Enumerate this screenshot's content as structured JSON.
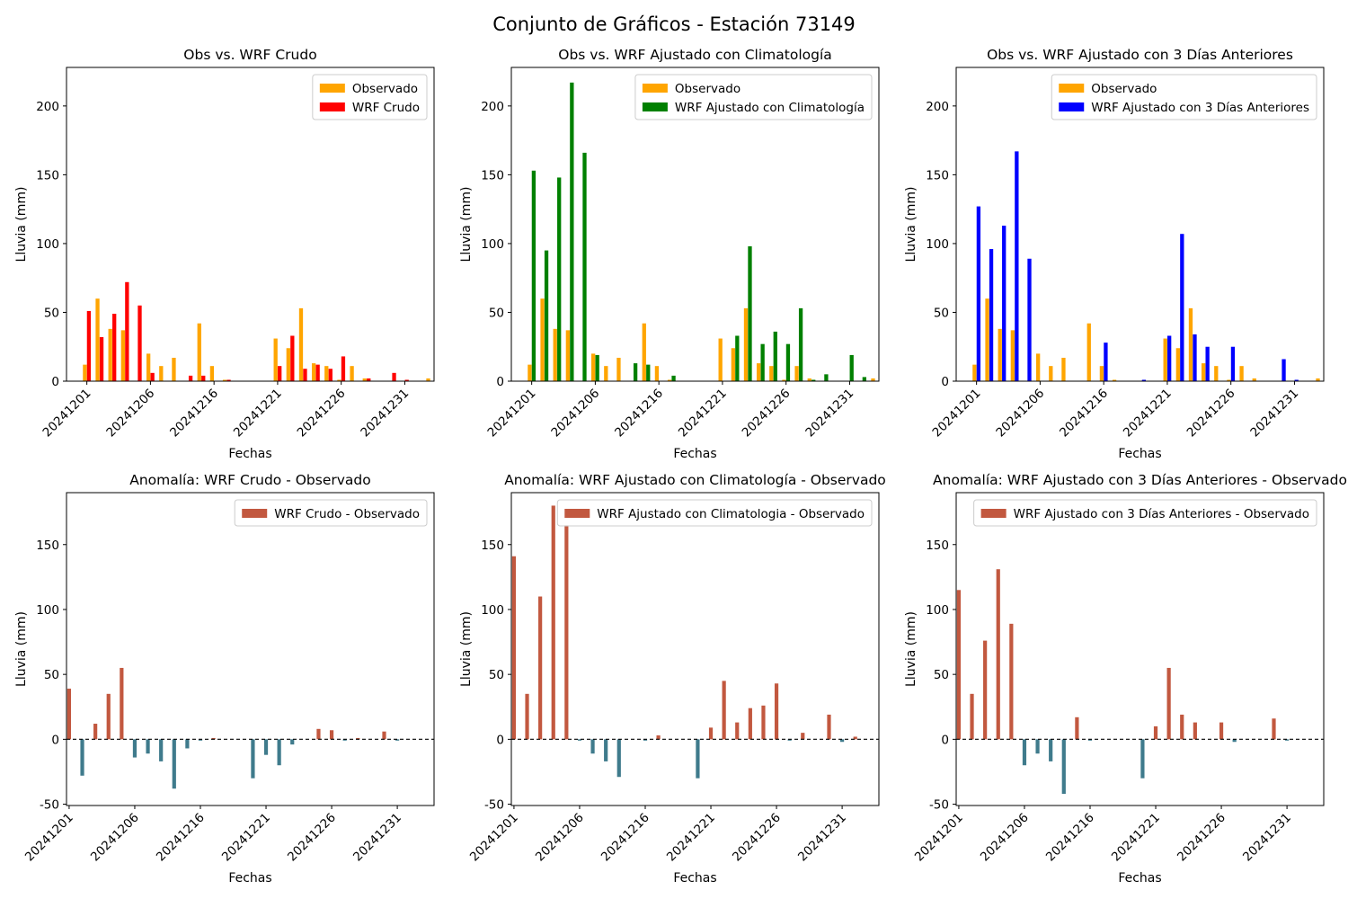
{
  "figure": {
    "title": "Conjunto de Gráficos - Estación 73149"
  },
  "colors": {
    "observed": "#ffa500",
    "raw": "#ff0000",
    "clim": "#008000",
    "prev3": "#0000ff",
    "anom_pos": "#c2583f",
    "anom_neg": "#3f7b8c"
  },
  "chart_data": [
    {
      "type": "bar",
      "title": "Obs vs. WRF Crudo",
      "xlabel": "Fechas",
      "ylabel": "Lluvia (mm)",
      "ylim": [
        0,
        228
      ],
      "yticks": [
        0,
        50,
        100,
        150,
        200
      ],
      "xticks": [
        "20241201",
        "20241206",
        "20241216",
        "20241221",
        "20241226",
        "20241231"
      ],
      "xtick_days": [
        1,
        6,
        11,
        16,
        21,
        26
      ],
      "xlim": [
        -1.6,
        27.3
      ],
      "legend_position": "top-right",
      "series": [
        {
          "name": "Observado",
          "color_key": "observed",
          "days": [
            1,
            2,
            3,
            4,
            5,
            6,
            7,
            8,
            9,
            10,
            11,
            12,
            13,
            14,
            15,
            16,
            17,
            18,
            19,
            20,
            21,
            22,
            23,
            24,
            25,
            26,
            27,
            28,
            29,
            30,
            31
          ],
          "values": [
            12,
            60,
            38,
            37,
            0,
            20,
            11,
            17,
            0,
            42,
            11,
            1,
            0,
            0,
            0,
            31,
            24,
            53,
            13,
            11,
            1,
            11,
            2,
            0,
            0,
            0,
            0,
            2,
            0,
            0,
            0
          ]
        },
        {
          "name": "WRF Crudo",
          "color_key": "raw",
          "days": [
            1,
            2,
            3,
            4,
            5,
            6,
            7,
            8,
            9,
            10,
            11,
            12,
            13,
            14,
            15,
            16,
            17,
            18,
            19,
            20,
            21,
            22,
            23,
            24,
            25,
            26,
            27,
            28,
            29,
            30,
            31
          ],
          "values": [
            51,
            32,
            49,
            72,
            55,
            6,
            0,
            0,
            4,
            4,
            0,
            1,
            0,
            0,
            0,
            11,
            33,
            9,
            12,
            9,
            18,
            0,
            2,
            0,
            6,
            1,
            0,
            0,
            0,
            0,
            0
          ]
        }
      ]
    },
    {
      "type": "bar",
      "title": "Obs vs. WRF Ajustado con Climatología",
      "xlabel": "Fechas",
      "ylabel": "Lluvia (mm)",
      "ylim": [
        0,
        228
      ],
      "yticks": [
        0,
        50,
        100,
        150,
        200
      ],
      "xticks": [
        "20241201",
        "20241206",
        "20241216",
        "20241221",
        "20241226",
        "20241231"
      ],
      "xtick_days": [
        1,
        6,
        11,
        16,
        21,
        26
      ],
      "xlim": [
        -1.6,
        27.3
      ],
      "legend_position": "top-right",
      "series": [
        {
          "name": "Observado",
          "color_key": "observed",
          "days": [
            1,
            2,
            3,
            4,
            5,
            6,
            7,
            8,
            9,
            10,
            11,
            12,
            13,
            14,
            15,
            16,
            17,
            18,
            19,
            20,
            21,
            22,
            23,
            24,
            25,
            26,
            27,
            28,
            29,
            30,
            31
          ],
          "values": [
            12,
            60,
            38,
            37,
            0,
            20,
            11,
            17,
            0,
            42,
            11,
            1,
            0,
            0,
            0,
            31,
            24,
            53,
            13,
            11,
            1,
            11,
            2,
            0,
            0,
            0,
            0,
            2,
            0,
            0,
            0
          ]
        },
        {
          "name": "WRF Ajustado con Climatología",
          "color_key": "clim",
          "days": [
            1,
            2,
            3,
            4,
            5,
            6,
            7,
            8,
            9,
            10,
            11,
            12,
            13,
            14,
            15,
            16,
            17,
            18,
            19,
            20,
            21,
            22,
            23,
            24,
            25,
            26,
            27,
            28,
            29,
            30,
            31
          ],
          "values": [
            153,
            95,
            148,
            217,
            166,
            19,
            0,
            0,
            13,
            12,
            0,
            4,
            0,
            0,
            0,
            0,
            33,
            98,
            27,
            36,
            27,
            53,
            1,
            5,
            0,
            19,
            3,
            0,
            0,
            0,
            0
          ]
        }
      ]
    },
    {
      "type": "bar",
      "title": "Obs vs. WRF Ajustado con 3 Días Anteriores",
      "xlabel": "Fechas",
      "ylabel": "Lluvia (mm)",
      "ylim": [
        0,
        228
      ],
      "yticks": [
        0,
        50,
        100,
        150,
        200
      ],
      "xticks": [
        "20241201",
        "20241206",
        "20241216",
        "20241221",
        "20241226",
        "20241231"
      ],
      "xtick_days": [
        1,
        6,
        11,
        16,
        21,
        26
      ],
      "xlim": [
        -1.6,
        27.3
      ],
      "legend_position": "top-right",
      "series": [
        {
          "name": "Observado",
          "color_key": "observed",
          "days": [
            1,
            2,
            3,
            4,
            5,
            6,
            7,
            8,
            9,
            10,
            11,
            12,
            13,
            14,
            15,
            16,
            17,
            18,
            19,
            20,
            21,
            22,
            23,
            24,
            25,
            26,
            27,
            28,
            29,
            30,
            31
          ],
          "values": [
            12,
            60,
            38,
            37,
            0,
            20,
            11,
            17,
            0,
            42,
            11,
            1,
            0,
            0,
            0,
            31,
            24,
            53,
            13,
            11,
            1,
            11,
            2,
            0,
            0,
            0,
            0,
            2,
            0,
            0,
            0
          ]
        },
        {
          "name": "WRF Ajustado con 3 Días Anteriores",
          "color_key": "prev3",
          "days": [
            1,
            2,
            3,
            4,
            5,
            6,
            7,
            8,
            9,
            10,
            11,
            12,
            13,
            14,
            15,
            16,
            17,
            18,
            19,
            20,
            21,
            22,
            23,
            24,
            25,
            26,
            27,
            28,
            29,
            30,
            31
          ],
          "values": [
            127,
            96,
            113,
            167,
            89,
            0,
            0,
            0,
            0,
            0,
            28,
            0,
            0,
            1,
            0,
            33,
            107,
            34,
            25,
            0,
            25,
            0,
            0,
            0,
            16,
            1,
            0,
            0,
            0,
            0,
            0
          ]
        }
      ]
    },
    {
      "type": "bar",
      "title": "Anomalía: WRF Crudo - Observado",
      "xlabel": "Fechas",
      "ylabel": "Lluvia (mm)",
      "ylim": [
        -51,
        190
      ],
      "yticks": [
        -50,
        0,
        50,
        100,
        150
      ],
      "xticks": [
        "20241201",
        "20241206",
        "20241216",
        "20241221",
        "20241226",
        "20241231"
      ],
      "xtick_days": [
        1,
        6,
        11,
        16,
        21,
        26
      ],
      "xlim": [
        -0.2,
        27.8
      ],
      "legend_position": "top-right",
      "series": [
        {
          "name": "WRF Crudo - Observado",
          "days": [
            1,
            2,
            3,
            4,
            5,
            6,
            7,
            8,
            9,
            10,
            11,
            12,
            13,
            14,
            15,
            16,
            17,
            18,
            19,
            20,
            21,
            22,
            23,
            24,
            25,
            26,
            27,
            28,
            29,
            30,
            31
          ],
          "values": [
            39,
            -28,
            12,
            35,
            55,
            -14,
            -11,
            -17,
            -38,
            -7,
            -1,
            1,
            0,
            0,
            -30,
            -12,
            -20,
            -4,
            0,
            8,
            7,
            -1,
            1,
            0,
            6,
            -1,
            0,
            0,
            0,
            0,
            0
          ]
        }
      ]
    },
    {
      "type": "bar",
      "title": "Anomalía: WRF Ajustado con Climatología - Observado",
      "xlabel": "Fechas",
      "ylabel": "Lluvia (mm)",
      "ylim": [
        -51,
        190
      ],
      "yticks": [
        -50,
        0,
        50,
        100,
        150
      ],
      "xticks": [
        "20241201",
        "20241206",
        "20241216",
        "20241221",
        "20241226",
        "20241231"
      ],
      "xtick_days": [
        1,
        6,
        11,
        16,
        21,
        26
      ],
      "xlim": [
        -0.2,
        27.8
      ],
      "legend_position": "top-right",
      "series": [
        {
          "name": "WRF Ajustado con Climatologia - Observado",
          "days": [
            1,
            2,
            3,
            4,
            5,
            6,
            7,
            8,
            9,
            10,
            11,
            12,
            13,
            14,
            15,
            16,
            17,
            18,
            19,
            20,
            21,
            22,
            23,
            24,
            25,
            26,
            27,
            28,
            29,
            30,
            31
          ],
          "values": [
            141,
            35,
            110,
            180,
            165,
            -1,
            -11,
            -17,
            -29,
            0,
            -1,
            3,
            0,
            0,
            -30,
            9,
            45,
            13,
            24,
            26,
            43,
            -1,
            5,
            0,
            19,
            -2,
            2,
            0,
            0,
            0,
            0
          ]
        }
      ]
    },
    {
      "type": "bar",
      "title": "Anomalía: WRF Ajustado con 3 Días Anteriores - Observado",
      "xlabel": "Fechas",
      "ylabel": "Lluvia (mm)",
      "ylim": [
        -51,
        190
      ],
      "yticks": [
        -50,
        0,
        50,
        100,
        150
      ],
      "xticks": [
        "20241201",
        "20241206",
        "20241216",
        "20241221",
        "20241226",
        "20241231"
      ],
      "xtick_days": [
        1,
        6,
        11,
        16,
        21,
        26
      ],
      "xlim": [
        -0.2,
        27.8
      ],
      "legend_position": "top-right",
      "series": [
        {
          "name": "WRF Ajustado con 3 Días Anteriores - Observado",
          "days": [
            1,
            2,
            3,
            4,
            5,
            6,
            7,
            8,
            9,
            10,
            11,
            12,
            13,
            14,
            15,
            16,
            17,
            18,
            19,
            20,
            21,
            22,
            23,
            24,
            25,
            26,
            27,
            28,
            29,
            30,
            31
          ],
          "values": [
            115,
            35,
            76,
            131,
            89,
            -20,
            -11,
            -17,
            -42,
            17,
            -1,
            0,
            0,
            0,
            -30,
            10,
            55,
            19,
            13,
            0,
            13,
            -2,
            0,
            0,
            16,
            -1,
            0,
            0,
            0,
            0,
            0
          ]
        }
      ]
    }
  ]
}
